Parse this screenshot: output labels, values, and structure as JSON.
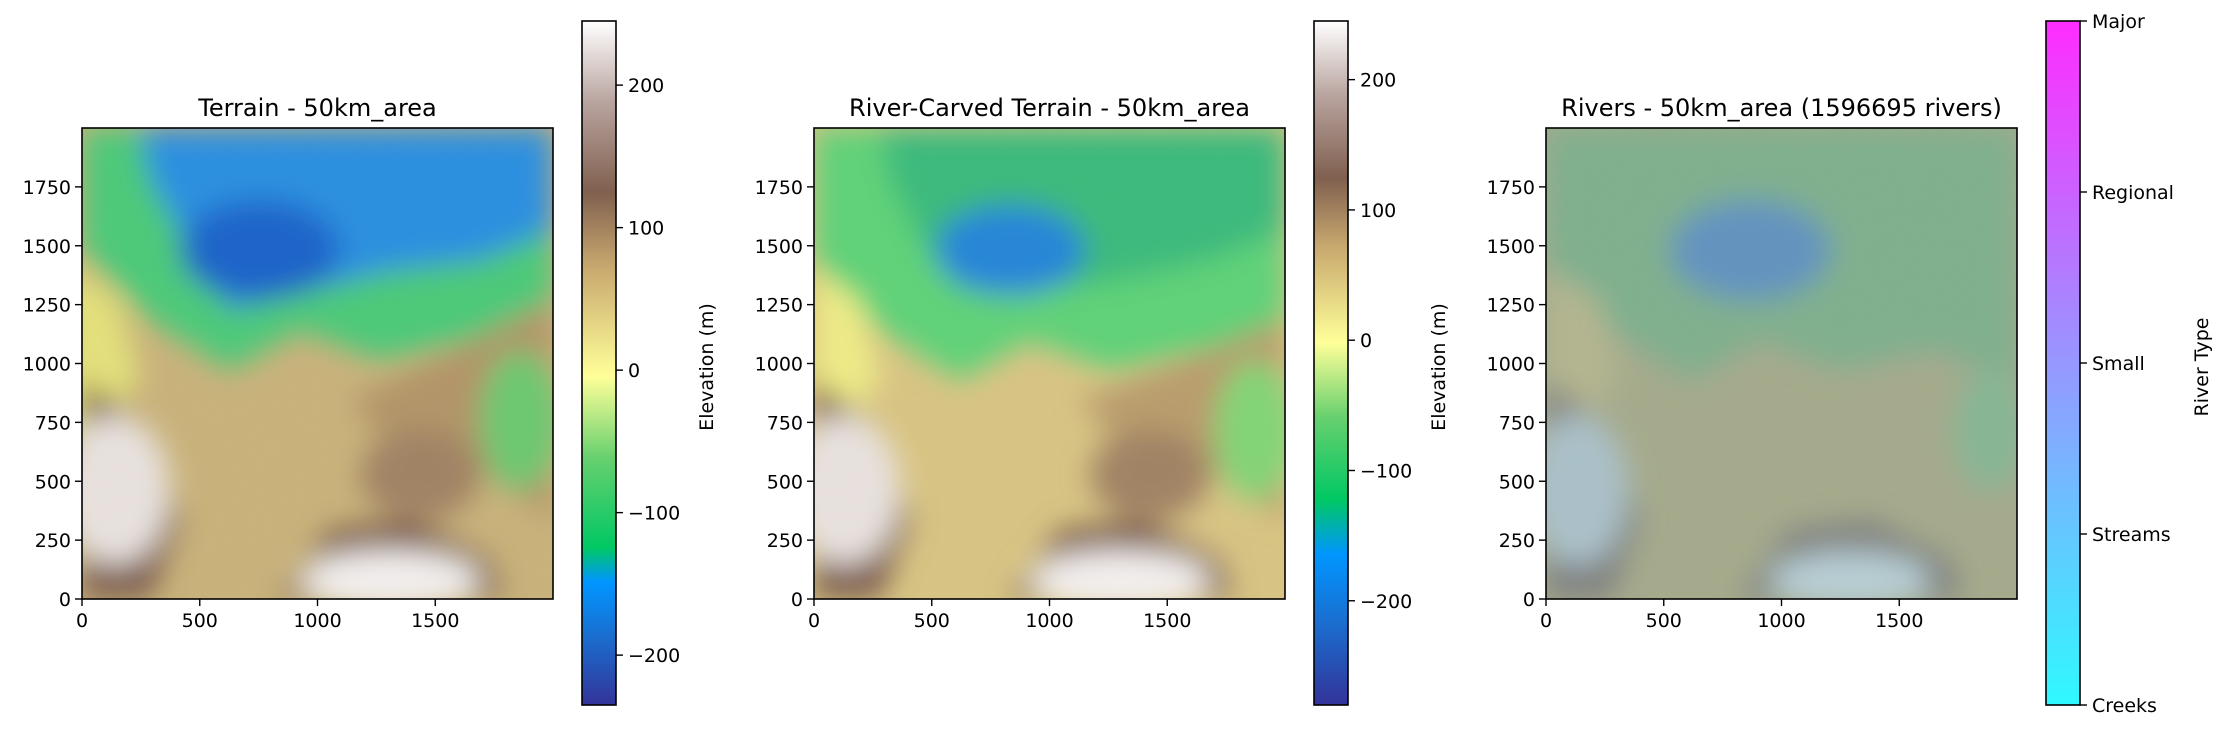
{
  "chart_data": [
    {
      "type": "heatmap",
      "title": "Terrain - 50km_area",
      "xticks": [
        0,
        500,
        1000,
        1500
      ],
      "yticks": [
        0,
        250,
        500,
        750,
        1000,
        1250,
        1500,
        1750
      ],
      "xlim": [
        0,
        2000
      ],
      "ylim": [
        0,
        2000
      ],
      "colorbar": {
        "label": "Elevation (m)",
        "range": [
          -235,
          245
        ],
        "ticks": [
          -200,
          -100,
          0,
          100,
          200
        ],
        "tick_labels": [
          "−200",
          "−100",
          "0",
          "100",
          "200"
        ]
      },
      "colormap": "terrain"
    },
    {
      "type": "heatmap",
      "title": "River-Carved Terrain - 50km_area",
      "xticks": [
        0,
        500,
        1000,
        1500
      ],
      "yticks": [
        0,
        250,
        500,
        750,
        1000,
        1250,
        1500,
        1750
      ],
      "xlim": [
        0,
        2000
      ],
      "ylim": [
        0,
        2000
      ],
      "colorbar": {
        "label": "Elevation (m)",
        "range": [
          -280,
          245
        ],
        "ticks": [
          -200,
          -100,
          0,
          100,
          200
        ],
        "tick_labels": [
          "−200",
          "−100",
          "0",
          "100",
          "200"
        ]
      },
      "colormap": "terrain"
    },
    {
      "type": "heatmap",
      "title": "Rivers - 50km_area (1596695 rivers)",
      "xticks": [
        0,
        500,
        1000,
        1500
      ],
      "yticks": [
        0,
        250,
        500,
        750,
        1000,
        1250,
        1500,
        1750
      ],
      "xlim": [
        0,
        2000
      ],
      "ylim": [
        0,
        2000
      ],
      "colorbar": {
        "label": "River Type",
        "tick_labels": [
          "Creeks",
          "Streams",
          "Small",
          "Regional",
          "Major"
        ],
        "colors": [
          "#2ff9ff",
          "#ff2cff"
        ]
      },
      "colormap": "cool"
    }
  ]
}
